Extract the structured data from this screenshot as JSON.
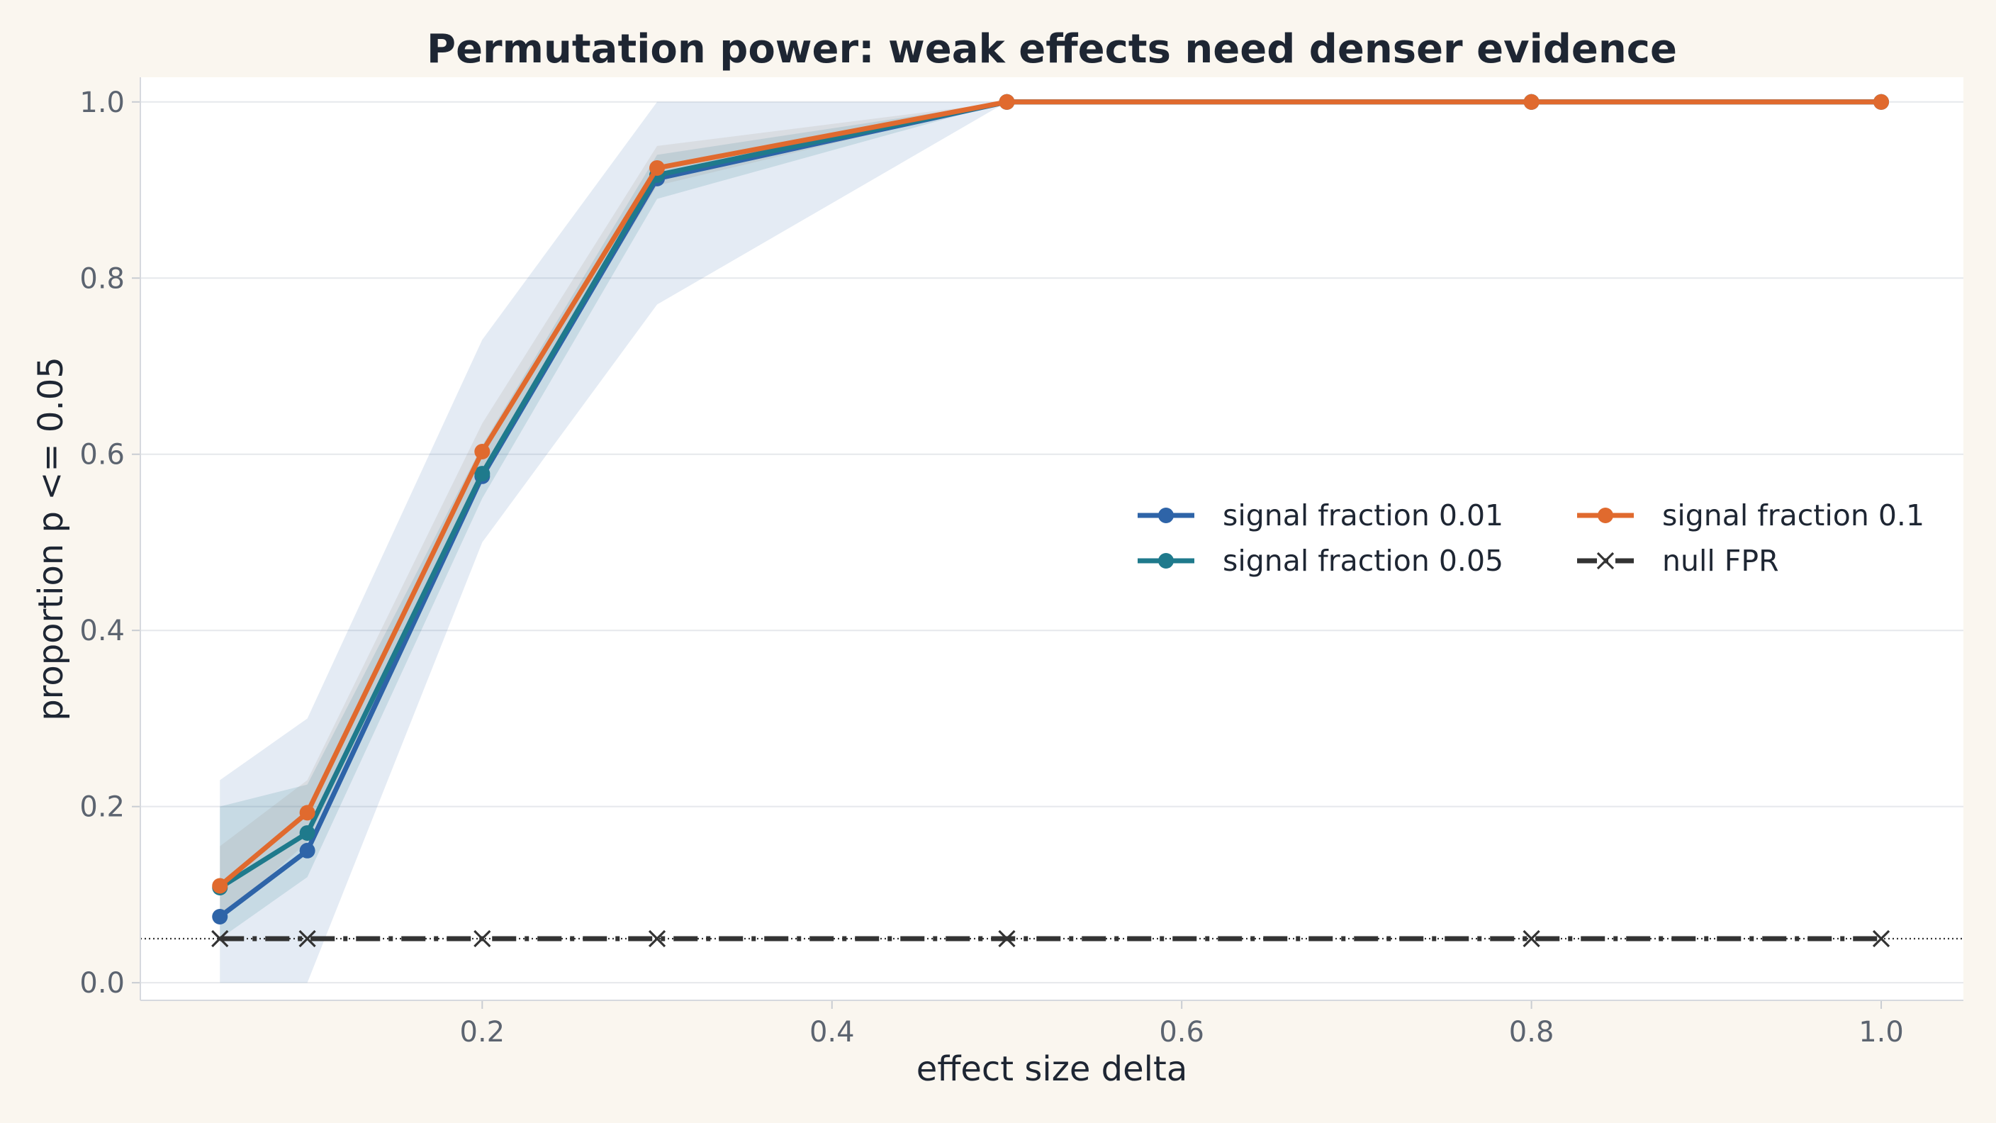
{
  "chart_data": {
    "type": "line",
    "title": "Permutation power: weak effects need denser evidence",
    "xlabel": "effect size delta",
    "ylabel": "proportion p <= 0.05",
    "x": [
      0.05,
      0.1,
      0.2,
      0.3,
      0.5,
      0.8,
      1.0
    ],
    "xlim": [
      0.0045,
      1.047
    ],
    "ylim": [
      -0.02,
      1.028
    ],
    "xticks": [
      0.2,
      0.4,
      0.6,
      0.8,
      1.0
    ],
    "xtick_labels": [
      "0.2",
      "0.4",
      "0.6",
      "0.8",
      "1.0"
    ],
    "yticks": [
      0.0,
      0.2,
      0.4,
      0.6,
      0.8,
      1.0
    ],
    "ytick_labels": [
      "0.0",
      "0.2",
      "0.4",
      "0.6",
      "0.8",
      "1.0"
    ],
    "grid": "horizontal",
    "legend_position": "center-right",
    "series": [
      {
        "name": "signal fraction 0.01",
        "color": "#2e64a8",
        "marker": "circle",
        "values": [
          0.075,
          0.15,
          0.575,
          0.913,
          1.0,
          1.0,
          1.0
        ],
        "band_lower": [
          0.0,
          0.0,
          0.5,
          0.77,
          1.0,
          1.0,
          1.0
        ],
        "band_upper": [
          0.23,
          0.3,
          0.73,
          1.0,
          1.0,
          1.0,
          1.0
        ]
      },
      {
        "name": "signal fraction 0.05",
        "color": "#1f7a8c",
        "marker": "circle",
        "values": [
          0.108,
          0.17,
          0.578,
          0.917,
          1.0,
          1.0,
          1.0
        ],
        "band_lower": [
          0.05,
          0.12,
          0.55,
          0.89,
          1.0,
          1.0,
          1.0
        ],
        "band_upper": [
          0.2,
          0.225,
          0.61,
          0.94,
          1.0,
          1.0,
          1.0
        ]
      },
      {
        "name": "signal fraction 0.1",
        "color": "#e06a2e",
        "marker": "circle",
        "values": [
          0.11,
          0.193,
          0.603,
          0.925,
          1.0,
          1.0,
          1.0
        ],
        "band_lower": [
          0.07,
          0.16,
          0.575,
          0.905,
          1.0,
          1.0,
          1.0
        ],
        "band_upper": [
          0.155,
          0.23,
          0.635,
          0.95,
          1.0,
          1.0,
          1.0
        ]
      },
      {
        "name": "null FPR",
        "color": "#333333",
        "marker": "x",
        "dash": "dashdot",
        "values": [
          0.05,
          0.05,
          0.05,
          0.05,
          0.05,
          0.05,
          0.05
        ]
      }
    ],
    "reference_line": {
      "y": 0.05,
      "style": "dotted",
      "color": "#333333"
    },
    "band_colors": [
      "#2e64a8",
      "#1f7a8c",
      "#e06a2e"
    ]
  }
}
